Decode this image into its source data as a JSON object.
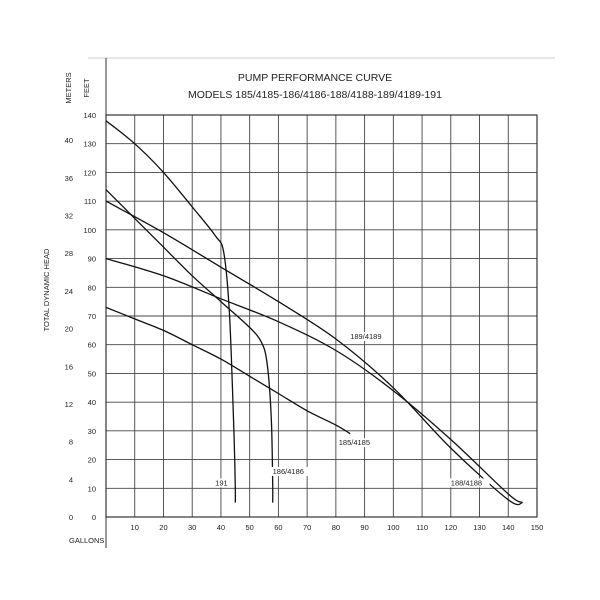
{
  "chart_data": {
    "type": "line",
    "title": "PUMP PERFORMANCE CURVE",
    "subtitle": "MODELS 185/4185-186/4186-188/4188-189/4189-191",
    "xlabel": "GALLONS",
    "ylabel_feet": "FEET",
    "ylabel_meters": "METERS",
    "ylabel_side": "TOTAL DYNAMIC HEAD",
    "xlim": [
      0,
      150
    ],
    "ylim_feet": [
      0,
      140
    ],
    "x_ticks": [
      "10",
      "20",
      "30",
      "40",
      "50",
      "60",
      "70",
      "80",
      "90",
      "100",
      "110",
      "120",
      "130",
      "140",
      "150"
    ],
    "y_ticks_feet": [
      "0",
      "10",
      "20",
      "30",
      "40",
      "50",
      "60",
      "70",
      "80",
      "90",
      "100",
      "110",
      "120",
      "130",
      "140"
    ],
    "y_ticks_meters": [
      "0",
      "4",
      "8",
      "12",
      "16",
      "20",
      "24",
      "28",
      "32",
      "36",
      "40"
    ],
    "meters_per_foot": 0.3048,
    "grid": true,
    "series": [
      {
        "name": "191",
        "x": [
          0,
          10,
          20,
          30,
          38,
          41,
          43,
          44.5,
          45,
          45
        ],
        "y": [
          138,
          130,
          120,
          108,
          98,
          92,
          70,
          30,
          10,
          5
        ]
      },
      {
        "name": "186/4186",
        "x": [
          0,
          10,
          20,
          30,
          40,
          50,
          54,
          56,
          57.5,
          58,
          58
        ],
        "y": [
          114,
          104,
          94,
          84,
          75,
          66,
          61,
          54,
          35,
          12,
          5
        ]
      },
      {
        "name": "185/4185",
        "x": [
          0,
          10,
          20,
          30,
          40,
          50,
          60,
          70,
          80,
          85
        ],
        "y": [
          73,
          69,
          65,
          60,
          55,
          49,
          43,
          37,
          32,
          29
        ]
      },
      {
        "name": "189/4189",
        "x": [
          0,
          20,
          40,
          60,
          80,
          100,
          120,
          140,
          145
        ],
        "y": [
          110,
          99,
          87,
          75,
          62,
          45,
          24,
          6,
          5
        ]
      },
      {
        "name": "188/4188",
        "x": [
          0,
          20,
          40,
          60,
          80,
          100,
          120,
          140,
          145
        ],
        "y": [
          90,
          84,
          76,
          68,
          58,
          44,
          27,
          8,
          5
        ]
      }
    ],
    "labels": [
      {
        "text": "191",
        "x": 38,
        "y": 11
      },
      {
        "text": "186/4186",
        "x": 58,
        "y": 15
      },
      {
        "text": "185/4185",
        "x": 81,
        "y": 25
      },
      {
        "text": "189/4189",
        "x": 85,
        "y": 62
      },
      {
        "text": "188/4188",
        "x": 120,
        "y": 11
      }
    ]
  }
}
